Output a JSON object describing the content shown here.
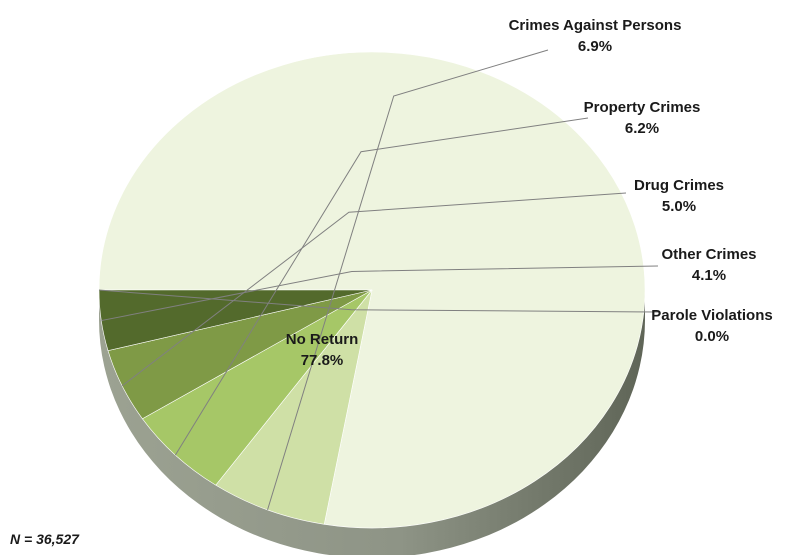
{
  "chart_data": {
    "type": "pie",
    "title": "",
    "slices": [
      {
        "name": "No Return",
        "value": 77.8,
        "label": "77.8%",
        "color": "#eef4df"
      },
      {
        "name": "Crimes Against Persons",
        "value": 6.9,
        "label": "6.9%",
        "color": "#cfe0a6"
      },
      {
        "name": "Property Crimes",
        "value": 6.2,
        "label": "6.2%",
        "color": "#a6c767"
      },
      {
        "name": "Drug Crimes",
        "value": 5.0,
        "label": "5.0%",
        "color": "#7f9a46"
      },
      {
        "name": "Other Crimes",
        "value": 4.1,
        "label": "4.1%",
        "color": "#536a2c"
      },
      {
        "name": "Parole Violations",
        "value": 0.0,
        "label": "0.0%",
        "color": "#3a4a20"
      }
    ],
    "style": "3d-tilted"
  },
  "note": "N = 36,527",
  "colors": {
    "rim": "#8e9486",
    "rim_dark": "#6f7567",
    "leader": "#808080"
  }
}
